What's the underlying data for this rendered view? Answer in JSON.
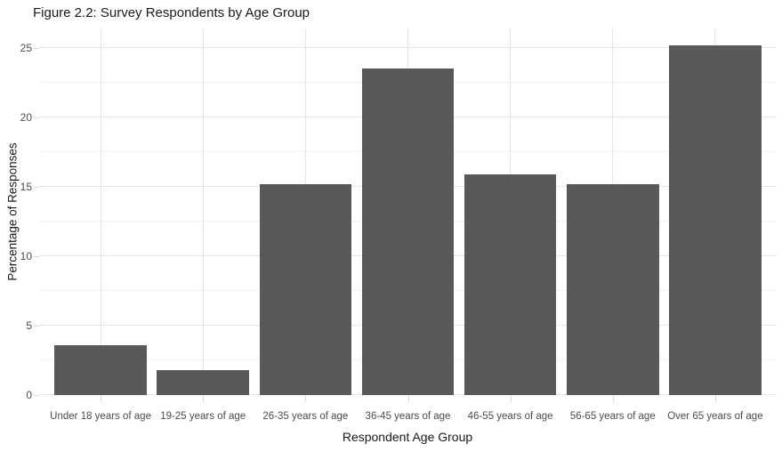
{
  "chart_data": {
    "type": "bar",
    "title": "Figure 2.2: Survey Respondents by Age Group",
    "xlabel": "Respondent Age Group",
    "ylabel": "Percentage of Responses",
    "categories": [
      "Under 18 years of age",
      "19-25 years of age",
      "26-35 years of age",
      "36-45 years of age",
      "46-55 years of age",
      "56-65 years of age",
      "Over 65 years of age"
    ],
    "values": [
      3.6,
      1.8,
      15.2,
      23.5,
      15.9,
      15.2,
      25.2
    ],
    "ylim": [
      0,
      26.4
    ],
    "yticks_major": [
      0,
      5,
      10,
      15,
      20,
      25
    ],
    "yticks_minor": [
      2.5,
      7.5,
      12.5,
      17.5,
      22.5
    ],
    "grid": true,
    "legend": "none",
    "colors": {
      "bar_fill": "#595959",
      "background": "#ffffff",
      "grid_major": "#e5e5e5",
      "grid_minor": "#f1f1f1",
      "axis_text": "#4d4d4d",
      "title_text": "#1a1a1a",
      "tick_mark": "#d9d9d9"
    }
  }
}
